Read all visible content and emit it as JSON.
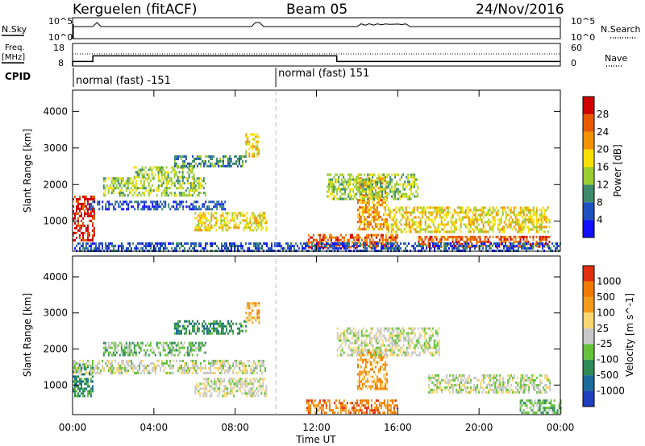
{
  "header": {
    "station": "Kerguelen (fitACF)",
    "beam": "Beam 05",
    "date": "24/Nov/2016"
  },
  "sky_panel": {
    "left_label": "N.Sky",
    "left_ticks": [
      "10^5",
      "10^0"
    ],
    "right_ticks": [
      "10^5",
      "10^0"
    ],
    "right_label": "N.Search",
    "right_legend_style": "dotted"
  },
  "freq_panel": {
    "left_label_line1": "Freq.",
    "left_label_line2": "[MHz]",
    "left_ticks": [
      "18",
      "8"
    ],
    "right_ticks": [
      "60",
      "0"
    ],
    "right_label": "Nave",
    "right_legend_style": "dotted",
    "freq_steps": [
      {
        "start_h": 0.0,
        "end_h": 1.0,
        "mhz": 10
      },
      {
        "start_h": 1.0,
        "end_h": 13.0,
        "mhz": 12.5
      },
      {
        "start_h": 13.0,
        "end_h": 24.0,
        "mhz": 10
      }
    ]
  },
  "cpid_panel": {
    "label": "CPID",
    "segments": [
      {
        "start_h": 0.0,
        "end_h": 10.0,
        "name": "normal (fast) -151"
      },
      {
        "start_h": 10.0,
        "end_h": 24.0,
        "name": "normal (fast) 151"
      }
    ]
  },
  "chart_data": [
    {
      "type": "heatmap",
      "quantity": "power",
      "xlabel": "",
      "ylabel": "Slant Range [km]",
      "xlim_hours": [
        0,
        24
      ],
      "ylim": [
        180,
        4580
      ],
      "yticks": [
        "1000",
        "2000",
        "3000",
        "4000"
      ],
      "colorbar_label": "Power [dB]",
      "colorbar_ticks": [
        "4",
        "8",
        "12",
        "16",
        "20",
        "24",
        "28"
      ],
      "colorbar_colors": [
        "#1010ff",
        "#2050c0",
        "#3e8a6a",
        "#9acd32",
        "#f6e000",
        "#f39200",
        "#e85a00",
        "#d00000"
      ],
      "regions": [
        {
          "start_h": 0.0,
          "end_h": 1.1,
          "range_min": 500,
          "range_max": 1700,
          "level": 7
        },
        {
          "start_h": 0.8,
          "end_h": 7.5,
          "range_min": 1300,
          "range_max": 1560,
          "level": 1
        },
        {
          "start_h": 1.5,
          "end_h": 6.5,
          "range_min": 1700,
          "range_max": 2200,
          "level": 3
        },
        {
          "start_h": 3.0,
          "end_h": 6.0,
          "range_min": 2200,
          "range_max": 2500,
          "level": 3
        },
        {
          "start_h": 5.0,
          "end_h": 8.5,
          "range_min": 2500,
          "range_max": 2800,
          "level": 2
        },
        {
          "start_h": 6.0,
          "end_h": 9.5,
          "range_min": 750,
          "range_max": 1250,
          "level": 4
        },
        {
          "start_h": 8.5,
          "end_h": 9.2,
          "range_min": 2800,
          "range_max": 3400,
          "level": 4
        },
        {
          "start_h": 11.5,
          "end_h": 16.0,
          "range_min": 300,
          "range_max": 650,
          "level": 6
        },
        {
          "start_h": 14.0,
          "end_h": 15.5,
          "range_min": 800,
          "range_max": 2200,
          "level": 5
        },
        {
          "start_h": 12.5,
          "end_h": 17.0,
          "range_min": 1600,
          "range_max": 2300,
          "level": 3
        },
        {
          "start_h": 15.5,
          "end_h": 23.5,
          "range_min": 700,
          "range_max": 1400,
          "level": 4
        },
        {
          "start_h": 17.0,
          "end_h": 23.5,
          "range_min": 300,
          "range_max": 600,
          "level": 6
        },
        {
          "start_h": 0.0,
          "end_h": 24.0,
          "range_min": 180,
          "range_max": 420,
          "level": 1
        }
      ]
    },
    {
      "type": "heatmap",
      "quantity": "velocity",
      "xlabel": "Time UT",
      "ylabel": "Slant Range [km]",
      "xlim_hours": [
        0,
        24
      ],
      "ylim": [
        180,
        4580
      ],
      "xticks": [
        "00:00",
        "04:00",
        "08:00",
        "12:00",
        "16:00",
        "20:00",
        "00:00"
      ],
      "yticks": [
        "1000",
        "2000",
        "3000",
        "4000"
      ],
      "colorbar_label": "Velocity [m s^-1]",
      "colorbar_ticks": [
        "1000",
        "500",
        "100",
        "25",
        "-25",
        "-100",
        "-500",
        "-1000"
      ],
      "colorbar_colors": [
        "#1f3fbf",
        "#1c6a9c",
        "#2e8b57",
        "#66c23a",
        "#c8c8c8",
        "#f8d870",
        "#f49b1c",
        "#f07a00",
        "#e03010"
      ],
      "regions": [
        {
          "start_h": 0.0,
          "end_h": 1.0,
          "range_min": 700,
          "range_max": 1600,
          "class": 2
        },
        {
          "start_h": 0.0,
          "end_h": 9.5,
          "range_min": 1300,
          "range_max": 1700,
          "class": 4
        },
        {
          "start_h": 1.5,
          "end_h": 6.5,
          "range_min": 1800,
          "range_max": 2200,
          "class": 3
        },
        {
          "start_h": 5.0,
          "end_h": 8.5,
          "range_min": 2400,
          "range_max": 2800,
          "class": 2
        },
        {
          "start_h": 8.5,
          "end_h": 9.2,
          "range_min": 2700,
          "range_max": 3300,
          "class": 6
        },
        {
          "start_h": 6.0,
          "end_h": 9.5,
          "range_min": 700,
          "range_max": 1200,
          "class": 4
        },
        {
          "start_h": 11.5,
          "end_h": 16.0,
          "range_min": 250,
          "range_max": 600,
          "class": 7
        },
        {
          "start_h": 14.0,
          "end_h": 15.5,
          "range_min": 900,
          "range_max": 2000,
          "class": 6
        },
        {
          "start_h": 13.0,
          "end_h": 18.0,
          "range_min": 1800,
          "range_max": 2600,
          "class": 4
        },
        {
          "start_h": 17.5,
          "end_h": 23.5,
          "range_min": 800,
          "range_max": 1300,
          "class": 4
        },
        {
          "start_h": 22.0,
          "end_h": 24.0,
          "range_min": 250,
          "range_max": 600,
          "class": 3
        }
      ]
    }
  ]
}
